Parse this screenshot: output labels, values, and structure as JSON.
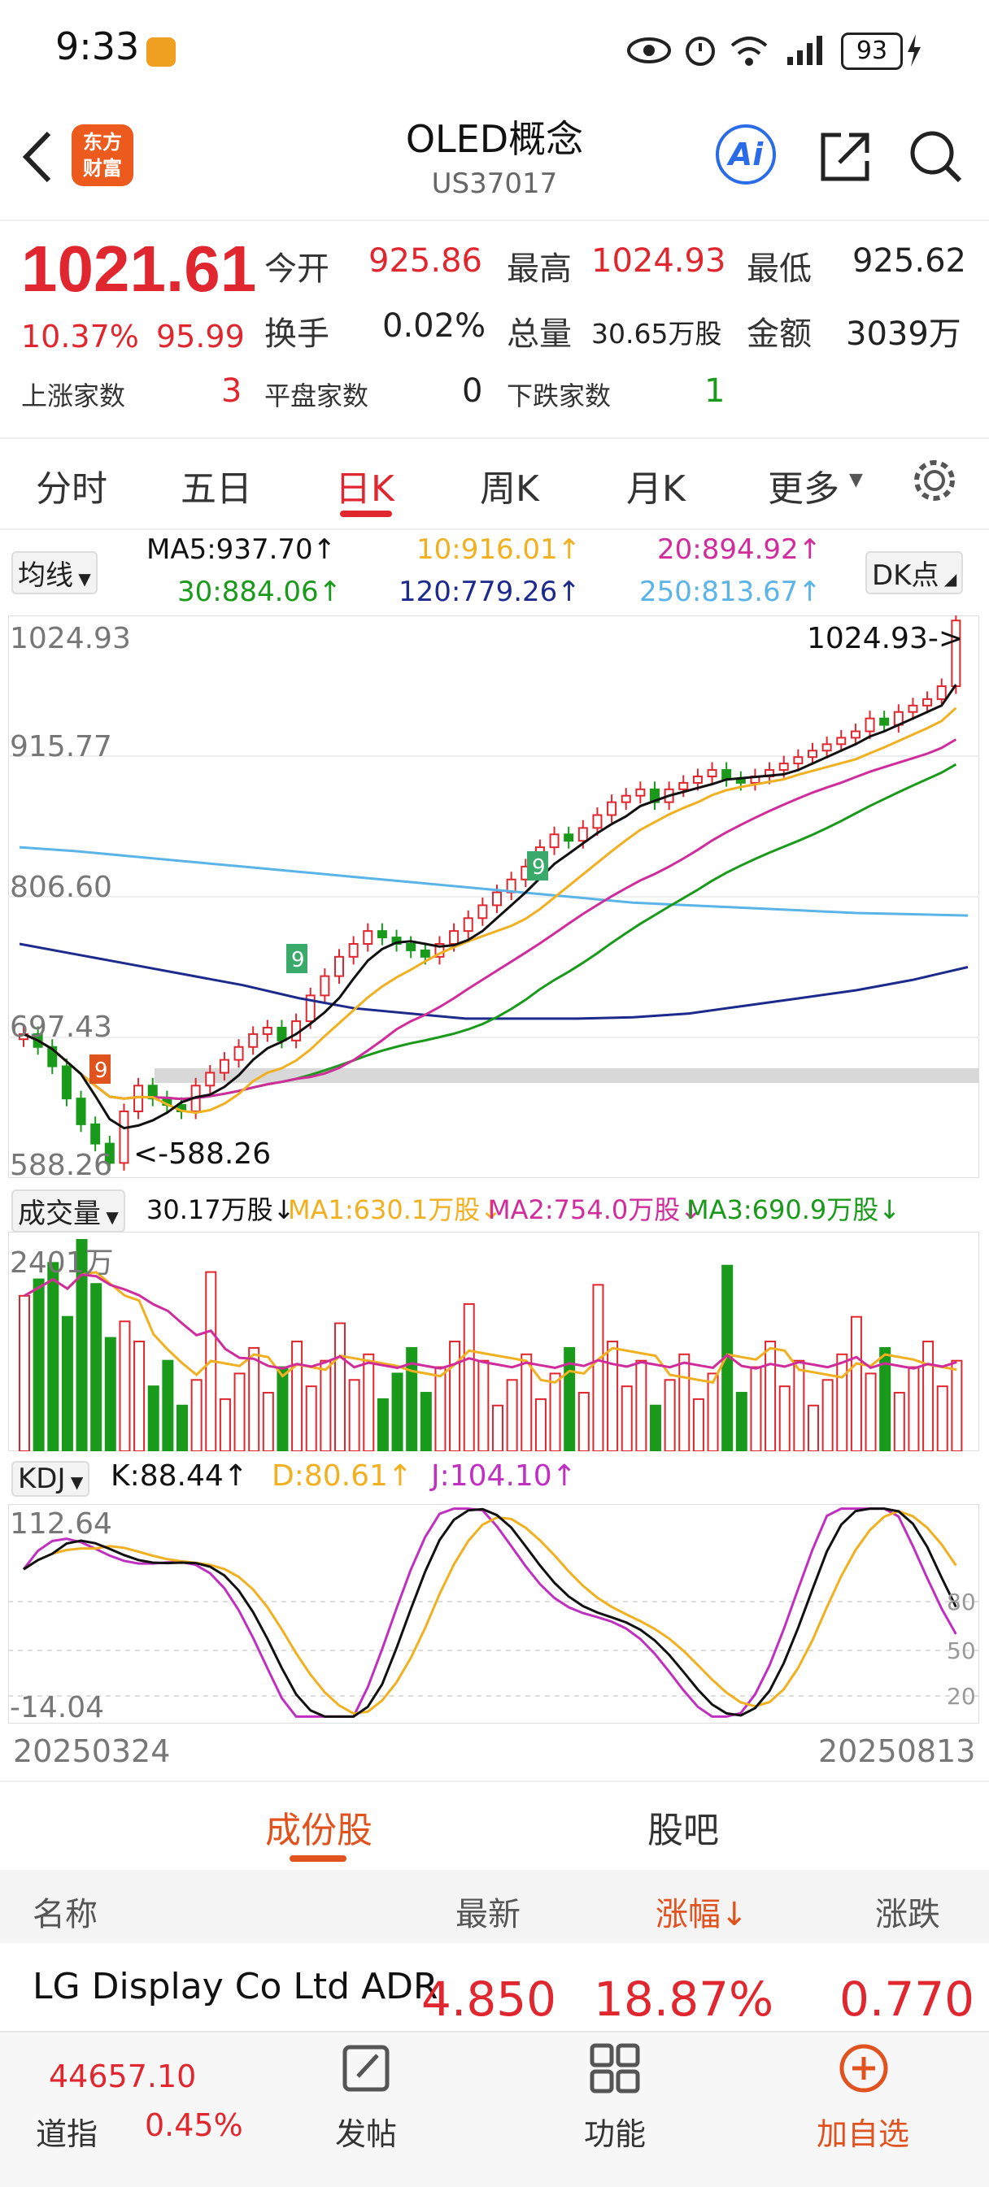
{
  "status_bar": {
    "time": "9:33",
    "battery": "93"
  },
  "header": {
    "title": "OLED概念",
    "code": "US37017",
    "logo_text": [
      "东方",
      "财富"
    ],
    "ai_label": "Ai"
  },
  "quote": {
    "price": "1021.61",
    "change_pct": "10.37%",
    "change": "95.99",
    "open_label": "今开",
    "open": "925.86",
    "high_label": "最高",
    "high": "1024.93",
    "low_label": "最低",
    "low": "925.62",
    "turnover_label": "换手",
    "turnover": "0.02%",
    "volume_label": "总量",
    "volume": "30.65万股",
    "amount_label": "金额",
    "amount": "3039万",
    "up_label": "上涨家数",
    "up": "3",
    "flat_label": "平盘家数",
    "flat": "0",
    "down_label": "下跌家数",
    "down": "1"
  },
  "tabs": [
    "分时",
    "五日",
    "日K",
    "周K",
    "月K",
    "更多"
  ],
  "active_tab": "日K",
  "ma_legend": {
    "selector": "均线",
    "dk": "DK点",
    "ma5": "MA5:937.70↑",
    "ma10": "10:916.01↑",
    "ma20": "20:894.92↑",
    "ma30": "30:884.06↑",
    "ma120": "120:779.26↑",
    "ma250": "250:813.67↑"
  },
  "colors": {
    "ma5": "#111111",
    "ma10": "#f0b020",
    "ma20": "#d02c9c",
    "ma30": "#1a9a1a",
    "ma120": "#1c2a8c",
    "ma250": "#5ab4e8",
    "up": "#e0262e",
    "down": "#1a9a1a"
  },
  "main_axis": {
    "y_top": "1024.93",
    "y_2": "915.77",
    "y_3": "806.60",
    "y_4": "697.43",
    "y_bottom": "588.26",
    "high_marker": "1024.93->",
    "low_marker": "<-588.26"
  },
  "volume": {
    "selector": "成交量",
    "current": "30.17万股↓",
    "ma1": "MA1:630.1万股↓",
    "ma2": "MA2:754.0万股↓",
    "ma3": "MA3:690.9万股↓",
    "y_max": "2401万"
  },
  "kdj": {
    "selector": "KDJ",
    "k": "K:88.44↑",
    "d": "D:80.61↑",
    "j": "J:104.10↑",
    "y_max": "112.64",
    "y_min": "-14.04",
    "level_80": "80",
    "level_50": "50",
    "level_20": "20"
  },
  "dates": {
    "start": "20250324",
    "end": "20250813"
  },
  "section_tabs": [
    "成份股",
    "股吧"
  ],
  "table": {
    "headers": [
      "名称",
      "最新",
      "涨幅↓",
      "涨跌"
    ],
    "rows": [
      {
        "name": "LG Display Co Ltd ADR",
        "latest": "4.850",
        "pct": "18.87%",
        "change": "0.770"
      }
    ]
  },
  "bottom_nav": {
    "index_value": "44657.10",
    "index_name": "道指",
    "index_pct": "0.45%",
    "post": "发帖",
    "func": "功能",
    "add": "加自选"
  },
  "chart_data": {
    "type": "candlestick",
    "ylim": [
      588.26,
      1024.93
    ],
    "price_path": [
      700,
      690,
      675,
      650,
      630,
      615,
      600,
      640,
      660,
      650,
      645,
      640,
      660,
      670,
      680,
      690,
      700,
      705,
      695,
      710,
      730,
      745,
      760,
      770,
      780,
      775,
      770,
      765,
      760,
      770,
      780,
      790,
      800,
      810,
      820,
      830,
      845,
      855,
      850,
      860,
      870,
      880,
      885,
      890,
      880,
      890,
      895,
      900,
      905,
      898,
      895,
      900,
      905,
      910,
      915,
      920,
      925,
      930,
      935,
      945,
      940,
      950,
      955,
      960,
      970,
      1021
    ],
    "ma_series": {
      "ma250": [
        845,
        842,
        838,
        834,
        830,
        826,
        822,
        818,
        814,
        810,
        806,
        802,
        800,
        798,
        796,
        794,
        793,
        792
      ],
      "ma120": [
        770,
        762,
        754,
        746,
        738,
        728,
        720,
        716,
        712,
        712,
        712,
        713,
        716,
        722,
        728,
        734,
        742,
        752
      ]
    },
    "volume_max": 2401,
    "kdj_range": [
      -14.04,
      112.64
    ]
  }
}
